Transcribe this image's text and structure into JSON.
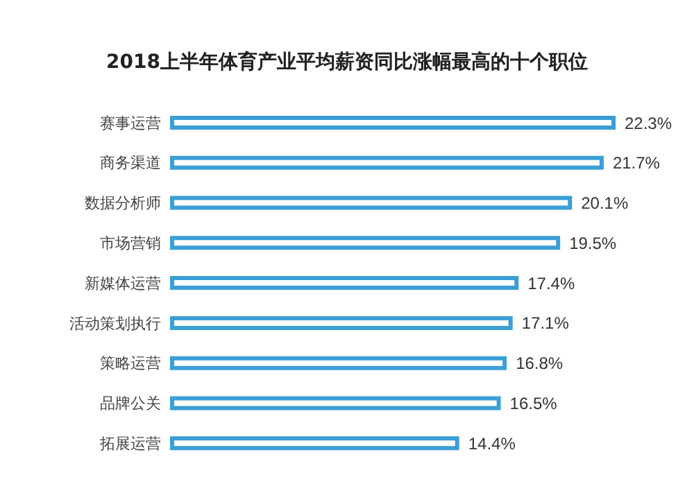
{
  "chart_data": {
    "type": "bar",
    "orientation": "horizontal",
    "title": "2018上半年体育产业平均薪资同比涨幅最高的十个职位",
    "categories": [
      "赛事运营",
      "商务渠道",
      "数据分析师",
      "市场营销",
      "新媒体运营",
      "活动策划执行",
      "策略运营",
      "品牌公关",
      "拓展运营"
    ],
    "values": [
      22.3,
      21.7,
      20.1,
      19.5,
      17.4,
      17.1,
      16.8,
      16.5,
      14.4
    ],
    "value_labels": [
      "22.3%",
      "21.7%",
      "20.1%",
      "19.5%",
      "17.4%",
      "17.1%",
      "16.8%",
      "16.5%",
      "14.4%"
    ],
    "color": "#3b9fd6"
  }
}
